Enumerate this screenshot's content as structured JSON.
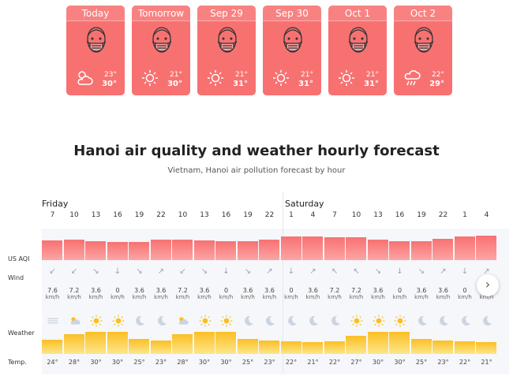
{
  "forecast_cards": [
    {
      "day": "Today",
      "low": "23°",
      "high": "30°",
      "weather_icon": "partly-cloudy-icon"
    },
    {
      "day": "Tomorrow",
      "low": "21°",
      "high": "30°",
      "weather_icon": "sun-icon"
    },
    {
      "day": "Sep 29",
      "low": "21°",
      "high": "31°",
      "weather_icon": "sun-icon"
    },
    {
      "day": "Sep 30",
      "low": "21°",
      "high": "31°",
      "weather_icon": "sun-icon"
    },
    {
      "day": "Oct 1",
      "low": "21°",
      "high": "31°",
      "weather_icon": "sun-icon"
    },
    {
      "day": "Oct 2",
      "low": "22°",
      "high": "29°",
      "weather_icon": "rain-icon"
    }
  ],
  "heading": {
    "title": "Hanoi air quality and weather hourly forecast",
    "subtitle": "Vietnam, Hanoi air pollution forecast by hour"
  },
  "days": {
    "friday": "Friday",
    "saturday": "Saturday"
  },
  "row_labels": {
    "aqi": "US AQI",
    "wind": "Wind",
    "weather": "Weather",
    "temp": "Temp."
  },
  "wind_unit": "km/h",
  "colors": {
    "aqi_red": "#f87171",
    "temp_bar": "#fbbf24",
    "grid_bg": "#f5f7fa"
  },
  "hourly": [
    {
      "hour": "7",
      "aqi_level": 0.62,
      "wind": "7.6",
      "weather": "fog-icon",
      "temp": "24°",
      "temp_level": 0.45
    },
    {
      "hour": "10",
      "aqi_level": 0.66,
      "wind": "7.2",
      "weather": "partly-cloudy-icon",
      "temp": "28°",
      "temp_level": 0.78
    },
    {
      "hour": "13",
      "aqi_level": 0.6,
      "wind": "3.6",
      "weather": "sun-icon",
      "temp": "30°",
      "temp_level": 0.92
    },
    {
      "hour": "16",
      "aqi_level": 0.58,
      "wind": "0",
      "weather": "sun-icon",
      "temp": "30°",
      "temp_level": 0.9
    },
    {
      "hour": "19",
      "aqi_level": 0.58,
      "wind": "3.6",
      "weather": "moon-icon",
      "temp": "25°",
      "temp_level": 0.52
    },
    {
      "hour": "22",
      "aqi_level": 0.64,
      "wind": "3.6",
      "weather": "moon-icon",
      "temp": "23°",
      "temp_level": 0.4
    },
    {
      "hour": "10",
      "aqi_level": 0.66,
      "wind": "7.2",
      "weather": "partly-cloudy-icon",
      "temp": "28°",
      "temp_level": 0.78
    },
    {
      "hour": "13",
      "aqi_level": 0.62,
      "wind": "3.6",
      "weather": "sun-icon",
      "temp": "30°",
      "temp_level": 0.92
    },
    {
      "hour": "16",
      "aqi_level": 0.6,
      "wind": "0",
      "weather": "sun-icon",
      "temp": "30°",
      "temp_level": 0.9
    },
    {
      "hour": "19",
      "aqi_level": 0.6,
      "wind": "3.6",
      "weather": "moon-icon",
      "temp": "25°",
      "temp_level": 0.52
    },
    {
      "hour": "22",
      "aqi_level": 0.64,
      "wind": "3.6",
      "weather": "moon-icon",
      "temp": "23°",
      "temp_level": 0.4
    },
    {
      "hour": "1",
      "aqi_level": 0.76,
      "wind": "0",
      "weather": "moon-icon",
      "temp": "22°",
      "temp_level": 0.35
    },
    {
      "hour": "4",
      "aqi_level": 0.76,
      "wind": "3.6",
      "weather": "moon-icon",
      "temp": "21°",
      "temp_level": 0.3
    },
    {
      "hour": "7",
      "aqi_level": 0.72,
      "wind": "7.2",
      "weather": "moon-icon",
      "temp": "22°",
      "temp_level": 0.35
    },
    {
      "hour": "10",
      "aqi_level": 0.72,
      "wind": "7.2",
      "weather": "sun-icon",
      "temp": "27°",
      "temp_level": 0.7
    },
    {
      "hour": "13",
      "aqi_level": 0.64,
      "wind": "3.6",
      "weather": "sun-icon",
      "temp": "30°",
      "temp_level": 0.92
    },
    {
      "hour": "16",
      "aqi_level": 0.6,
      "wind": "0",
      "weather": "sun-icon",
      "temp": "30°",
      "temp_level": 0.9
    },
    {
      "hour": "19",
      "aqi_level": 0.6,
      "wind": "3.6",
      "weather": "moon-icon",
      "temp": "25°",
      "temp_level": 0.52
    },
    {
      "hour": "22",
      "aqi_level": 0.68,
      "wind": "3.6",
      "weather": "moon-icon",
      "temp": "23°",
      "temp_level": 0.4
    },
    {
      "hour": "1",
      "aqi_level": 0.76,
      "wind": "0",
      "weather": "moon-icon",
      "temp": "22°",
      "temp_level": 0.35
    },
    {
      "hour": "4",
      "aqi_level": 0.78,
      "wind": "3.6",
      "weather": "moon-icon",
      "temp": "21°",
      "temp_level": 0.3
    }
  ]
}
